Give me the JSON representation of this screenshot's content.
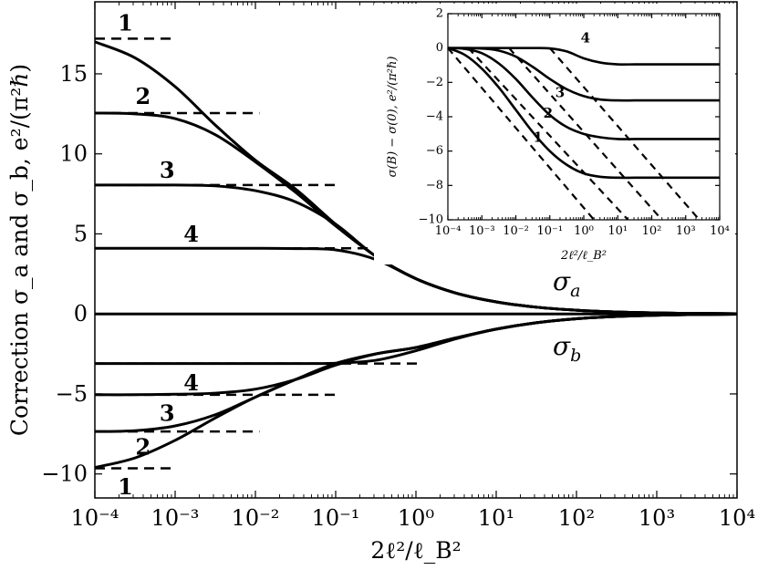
{
  "chart_data": [
    {
      "id": "main",
      "type": "line",
      "xscale": "log",
      "xlabel": "2ℓ²/ℓ_B²",
      "ylabel": "Correction σ_a and σ_b, e²/(π²ℏ)",
      "xlim": [
        -4,
        4
      ],
      "ylim": [
        -11.5,
        19.5
      ],
      "xticks": [
        -4,
        -3,
        -2,
        -1,
        0,
        1,
        2,
        3,
        4
      ],
      "xtick_labels": [
        "10⁻⁴",
        "10⁻³",
        "10⁻²",
        "10⁻¹",
        "10⁰",
        "10¹",
        "10²",
        "10³",
        "10⁴"
      ],
      "yticks": [
        -10,
        -5,
        0,
        5,
        10,
        15
      ],
      "ytick_labels": [
        "−10",
        "−5",
        "0",
        "5",
        "10",
        "15"
      ],
      "series_labels": {
        "sigma_a": "σ",
        "sigma_a_sub": "a",
        "sigma_b": "σ",
        "sigma_b_sub": "b"
      },
      "series": [
        {
          "name": "σ_a curve 1",
          "family": "a",
          "curve": 1,
          "saturation": 17.2,
          "logx": [
            -4,
            -3.5,
            -3,
            -2.5,
            -2,
            -1.5,
            -1,
            -0.5,
            0,
            0.5,
            1,
            1.5,
            2,
            2.5,
            3,
            3.5,
            4
          ],
          "values": [
            17.0,
            16.0,
            14.2,
            11.8,
            9.6,
            7.8,
            5.6,
            3.6,
            2.2,
            1.3,
            0.75,
            0.42,
            0.23,
            0.12,
            0.06,
            0.03,
            0.01
          ]
        },
        {
          "name": "σ_a curve 2",
          "family": "a",
          "curve": 2,
          "saturation": 12.55,
          "logx": [
            -4,
            -3.5,
            -3,
            -2.5,
            -2,
            -1.5,
            -1,
            -0.5,
            0,
            0.5,
            1,
            1.5,
            2,
            2.5,
            3,
            3.5,
            4
          ],
          "values": [
            12.55,
            12.5,
            12.2,
            11.2,
            9.5,
            7.6,
            5.5,
            3.6,
            2.2,
            1.3,
            0.75,
            0.42,
            0.23,
            0.12,
            0.06,
            0.03,
            0.01
          ]
        },
        {
          "name": "σ_a curve 3",
          "family": "a",
          "curve": 3,
          "saturation": 8.05,
          "logx": [
            -4,
            -3.5,
            -3,
            -2.5,
            -2,
            -1.5,
            -1,
            -0.5,
            0,
            0.5,
            1,
            1.5,
            2,
            2.5,
            3,
            3.5,
            4
          ],
          "values": [
            8.05,
            8.05,
            8.05,
            8.0,
            7.7,
            7.0,
            5.6,
            3.6,
            2.2,
            1.3,
            0.75,
            0.42,
            0.23,
            0.12,
            0.06,
            0.03,
            0.01
          ]
        },
        {
          "name": "σ_a curve 4",
          "family": "a",
          "curve": 4,
          "saturation": 4.1,
          "logx": [
            -4,
            -3.5,
            -3,
            -2.5,
            -2,
            -1.5,
            -1,
            -0.5,
            0,
            0.5,
            1,
            1.5,
            2,
            2.5,
            3,
            3.5,
            4
          ],
          "values": [
            4.1,
            4.1,
            4.1,
            4.1,
            4.1,
            4.08,
            4.0,
            3.4,
            2.2,
            1.3,
            0.75,
            0.42,
            0.23,
            0.12,
            0.06,
            0.03,
            0.01
          ]
        },
        {
          "name": "zero line",
          "family": "zero",
          "curve": 0,
          "logx": [
            -4,
            4
          ],
          "values": [
            0,
            0
          ]
        },
        {
          "name": "σ_b curve 1",
          "family": "b",
          "curve": 1,
          "saturation": -9.65,
          "logx": [
            -4,
            -3.5,
            -3,
            -2.5,
            -2,
            -1.5,
            -1,
            -0.5,
            0,
            0.5,
            1,
            1.5,
            2,
            2.5,
            3,
            3.5,
            4
          ],
          "values": [
            -9.6,
            -9.0,
            -7.9,
            -6.5,
            -5.2,
            -4.1,
            -3.1,
            -2.5,
            -2.1,
            -1.5,
            -0.95,
            -0.55,
            -0.3,
            -0.16,
            -0.08,
            -0.04,
            -0.02
          ]
        },
        {
          "name": "σ_b curve 2",
          "family": "b",
          "curve": 2,
          "saturation": -7.35,
          "logx": [
            -4,
            -3.5,
            -3,
            -2.5,
            -2,
            -1.5,
            -1,
            -0.5,
            0,
            0.5,
            1,
            1.5,
            2,
            2.5,
            3,
            3.5,
            4
          ],
          "values": [
            -7.35,
            -7.3,
            -7.0,
            -6.3,
            -5.2,
            -4.1,
            -3.1,
            -2.5,
            -2.1,
            -1.5,
            -0.95,
            -0.55,
            -0.3,
            -0.16,
            -0.08,
            -0.04,
            -0.02
          ]
        },
        {
          "name": "σ_b curve 3",
          "family": "b",
          "curve": 3,
          "saturation": -5.05,
          "logx": [
            -4,
            -3.5,
            -3,
            -2.5,
            -2,
            -1.5,
            -1,
            -0.5,
            0,
            0.5,
            1,
            1.5,
            2,
            2.5,
            3,
            3.5,
            4
          ],
          "values": [
            -5.05,
            -5.05,
            -5.02,
            -4.95,
            -4.7,
            -4.1,
            -3.2,
            -2.5,
            -2.1,
            -1.5,
            -0.95,
            -0.55,
            -0.3,
            -0.16,
            -0.08,
            -0.04,
            -0.02
          ]
        },
        {
          "name": "σ_b curve 4",
          "family": "b",
          "curve": 4,
          "saturation": -3.1,
          "logx": [
            -4,
            -3.5,
            -3,
            -2.5,
            -2,
            -1.5,
            -1,
            -0.5,
            0,
            0.5,
            1,
            1.5,
            2,
            2.5,
            3,
            3.5,
            4
          ],
          "values": [
            -3.1,
            -3.1,
            -3.1,
            -3.1,
            -3.1,
            -3.1,
            -3.08,
            -2.9,
            -2.3,
            -1.55,
            -0.95,
            -0.55,
            -0.3,
            -0.16,
            -0.08,
            -0.04,
            -0.02
          ]
        }
      ],
      "dashed_saturation": [
        {
          "curve": 1,
          "value": 17.2,
          "logx_range": [
            -4,
            -3.05
          ],
          "label": "1",
          "label_logx": -3.62,
          "label_y": 18.2
        },
        {
          "curve": 2,
          "value": 12.55,
          "logx_range": [
            -4,
            -1.95
          ],
          "label": "2",
          "label_logx": -3.4,
          "label_y": 13.6
        },
        {
          "curve": 3,
          "value": 8.05,
          "logx_range": [
            -4,
            -0.95
          ],
          "label": "3",
          "label_logx": -3.1,
          "label_y": 9.0
        },
        {
          "curve": 4,
          "value": 4.1,
          "logx_range": [
            -4,
            0.05
          ],
          "label": "4",
          "label_logx": -2.8,
          "label_y": 5.0
        },
        {
          "curve": 1,
          "value": -9.65,
          "logx_range": [
            -4,
            -3.05
          ],
          "label": "1",
          "label_logx": -3.62,
          "label_y": -10.8
        },
        {
          "curve": 2,
          "value": -7.35,
          "logx_range": [
            -4,
            -1.95
          ],
          "label": "2",
          "label_logx": -3.4,
          "label_y": -8.3
        },
        {
          "curve": 3,
          "value": -5.05,
          "logx_range": [
            -4,
            -0.95
          ],
          "label": "3",
          "label_logx": -3.1,
          "label_y": -6.2
        },
        {
          "curve": 4,
          "value": -3.1,
          "logx_range": [
            -4,
            0.05
          ],
          "label": "4",
          "label_logx": -2.8,
          "label_y": -4.3
        }
      ]
    },
    {
      "id": "inset",
      "type": "line",
      "xscale": "log",
      "xlabel": "2ℓ²/ℓ_B²",
      "ylabel": "σ(B) − σ(0), e²/(π²ℏ)",
      "xlim": [
        -4,
        4
      ],
      "ylim": [
        -10,
        2
      ],
      "xticks": [
        -4,
        -3,
        -2,
        -1,
        0,
        1,
        2,
        3,
        4
      ],
      "xtick_labels": [
        "10⁻⁴",
        "10⁻³",
        "10⁻²",
        "10⁻¹",
        "10⁰",
        "10¹",
        "10²",
        "10³",
        "10⁴"
      ],
      "yticks": [
        -10,
        -8,
        -6,
        -4,
        -2,
        0,
        2
      ],
      "ytick_labels": [
        "−10",
        "−8",
        "−6",
        "−4",
        "−2",
        "0",
        "2"
      ],
      "series": [
        {
          "name": "inset curve 1",
          "curve": 1,
          "logx": [
            -4,
            -3.5,
            -3,
            -2.5,
            -2,
            -1.5,
            -1,
            -0.5,
            0,
            0.5,
            1,
            1.5,
            2,
            2.5,
            3,
            3.5,
            4
          ],
          "values": [
            0,
            -0.4,
            -1.2,
            -2.3,
            -3.6,
            -4.9,
            -6.0,
            -6.8,
            -7.3,
            -7.5,
            -7.55,
            -7.55,
            -7.55,
            -7.55,
            -7.55,
            -7.55,
            -7.55
          ]
        },
        {
          "name": "inset curve 2",
          "curve": 2,
          "logx": [
            -4,
            -3.5,
            -3,
            -2.5,
            -2,
            -1.5,
            -1,
            -0.5,
            0,
            0.5,
            1,
            1.5,
            2,
            2.5,
            3,
            3.5,
            4
          ],
          "values": [
            0,
            -0.05,
            -0.3,
            -0.9,
            -1.8,
            -2.9,
            -3.9,
            -4.6,
            -5.0,
            -5.2,
            -5.3,
            -5.3,
            -5.3,
            -5.3,
            -5.3,
            -5.3,
            -5.3
          ]
        },
        {
          "name": "inset curve 3",
          "curve": 3,
          "logx": [
            -4,
            -3.5,
            -3,
            -2.5,
            -2,
            -1.5,
            -1,
            -0.5,
            0,
            0.5,
            1,
            1.5,
            2,
            2.5,
            3,
            3.5,
            4
          ],
          "values": [
            0,
            0,
            -0.03,
            -0.15,
            -0.5,
            -1.1,
            -1.8,
            -2.4,
            -2.8,
            -3.0,
            -3.05,
            -3.05,
            -3.05,
            -3.05,
            -3.05,
            -3.05,
            -3.05
          ]
        },
        {
          "name": "inset curve 4",
          "curve": 4,
          "logx": [
            -4,
            -3.5,
            -3,
            -2.5,
            -2,
            -1.5,
            -1,
            -0.5,
            0,
            0.5,
            1,
            1.5,
            2,
            2.5,
            3,
            3.5,
            4
          ],
          "values": [
            0,
            0,
            0,
            0,
            0,
            0,
            -0.02,
            -0.2,
            -0.6,
            -0.85,
            -0.95,
            -0.95,
            -0.95,
            -0.95,
            -0.95,
            -0.95,
            -0.95
          ]
        }
      ],
      "dashed_asymptotes": [
        {
          "curve": 1,
          "logx": [
            -4,
            0.3
          ],
          "values": [
            0,
            -10
          ]
        },
        {
          "curve": 2,
          "logx": [
            -3.4,
            1.3
          ],
          "values": [
            0,
            -10
          ]
        },
        {
          "curve": 3,
          "logx": [
            -2.2,
            2.3
          ],
          "values": [
            0,
            -10
          ]
        },
        {
          "curve": 4,
          "logx": [
            -1.0,
            3.4
          ],
          "values": [
            0,
            -10
          ]
        }
      ],
      "curve_labels": [
        {
          "label": "1",
          "logx": -1.35,
          "value": -5.2
        },
        {
          "label": "2",
          "logx": -1.05,
          "value": -3.8
        },
        {
          "label": "3",
          "logx": -0.7,
          "value": -2.6
        },
        {
          "label": "4",
          "logx": 0.05,
          "value": 0.6
        }
      ]
    }
  ]
}
